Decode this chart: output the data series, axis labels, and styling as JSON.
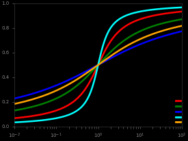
{
  "background_color": "#000000",
  "axes_background": "#000000",
  "tick_color": "#888888",
  "figsize": [
    2.75,
    2.06
  ],
  "dpi": 100,
  "xlim_log": [
    -2,
    2
  ],
  "ylim": [
    0,
    1
  ],
  "curves": [
    {
      "mu": 0,
      "sigma": 1,
      "color": "#ff0000"
    },
    {
      "mu": 0,
      "sigma": 2,
      "color": "#008000"
    },
    {
      "mu": 0,
      "sigma": 4,
      "color": "#0000ff"
    },
    {
      "mu": 0,
      "sigma": 0.5,
      "color": "#00ffff"
    },
    {
      "mu": 0,
      "sigma": 3,
      "color": "#ffa500"
    }
  ],
  "legend_colors": [
    "#ff0000",
    "#008000",
    "#0000ff",
    "#00ffff",
    "#ffa500"
  ],
  "legend_labels": [
    "",
    "",
    "",
    "",
    ""
  ]
}
